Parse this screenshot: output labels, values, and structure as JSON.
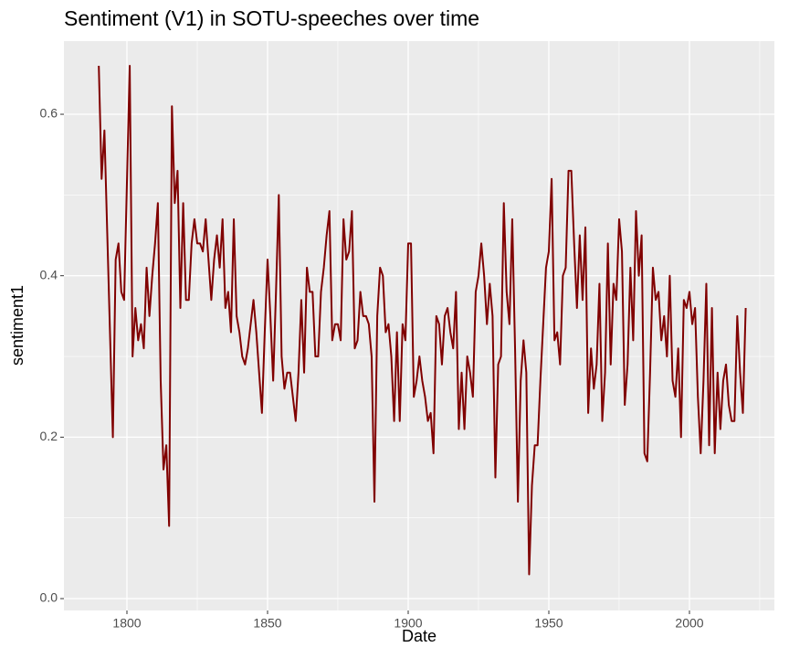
{
  "chart_data": {
    "type": "line",
    "title": "Sentiment (V1) in SOTU-speeches over time",
    "x_label": "Date",
    "y_label": "sentiment1",
    "xlim": [
      1777.6,
      2030.2
    ],
    "ylim": [
      -0.0147,
      0.6906
    ],
    "xticks": [
      1800,
      1850,
      1900,
      1950,
      2000
    ],
    "yticks": [
      {
        "value": 0,
        "label": "0.0"
      },
      0.2,
      0.4,
      0.6
    ],
    "x_minor_ticks": [
      1825,
      1875,
      1925,
      1975,
      2025
    ],
    "y_minor_ticks": [
      0.1,
      0.3,
      0.5
    ],
    "grid": true,
    "x": [
      1790,
      1791,
      1792,
      1795,
      1796,
      1797,
      1798,
      1799,
      1801,
      1802,
      1803,
      1804,
      1805,
      1806,
      1807,
      1808,
      1809,
      1810,
      1811,
      1812,
      1813,
      1814,
      1815,
      1816,
      1817,
      1818,
      1819,
      1820,
      1821,
      1822,
      1823,
      1824,
      1825,
      1826,
      1827,
      1828,
      1829,
      1830,
      1831,
      1832,
      1833,
      1834,
      1835,
      1836,
      1837,
      1838,
      1839,
      1840,
      1841,
      1842,
      1843,
      1845,
      1846,
      1847,
      1848,
      1849,
      1850,
      1851,
      1852,
      1853,
      1854,
      1855,
      1856,
      1857,
      1858,
      1859,
      1860,
      1861,
      1862,
      1863,
      1864,
      1865,
      1866,
      1867,
      1868,
      1869,
      1870,
      1871,
      1872,
      1873,
      1874,
      1875,
      1876,
      1877,
      1878,
      1879,
      1880,
      1881,
      1882,
      1883,
      1884,
      1885,
      1886,
      1887,
      1888,
      1889,
      1890,
      1891,
      1892,
      1893,
      1894,
      1895,
      1896,
      1897,
      1898,
      1899,
      1900,
      1901,
      1902,
      1903,
      1904,
      1905,
      1906,
      1907,
      1908,
      1909,
      1910,
      1911,
      1912,
      1913,
      1914,
      1915,
      1916,
      1917,
      1918,
      1919,
      1920,
      1921,
      1922,
      1923,
      1924,
      1925,
      1926,
      1927,
      1928,
      1929,
      1930,
      1931,
      1932,
      1933,
      1934,
      1935,
      1936,
      1937,
      1938,
      1939,
      1940,
      1941,
      1942,
      1943,
      1944,
      1945,
      1946,
      1947,
      1948,
      1949,
      1950,
      1951,
      1952,
      1953,
      1954,
      1955,
      1956,
      1957,
      1958,
      1959,
      1960,
      1961,
      1962,
      1963,
      1964,
      1965,
      1966,
      1967,
      1968,
      1969,
      1970,
      1971,
      1972,
      1973,
      1974,
      1975,
      1976,
      1977,
      1978,
      1979,
      1980,
      1981,
      1982,
      1983,
      1984,
      1985,
      1986,
      1987,
      1988,
      1989,
      1990,
      1991,
      1992,
      1993,
      1994,
      1995,
      1996,
      1997,
      1998,
      1999,
      2000,
      2001,
      2002,
      2003,
      2004,
      2005,
      2006,
      2007,
      2008,
      2009,
      2010,
      2011,
      2012,
      2013,
      2014,
      2015,
      2016,
      2017,
      2018,
      2019,
      2020
    ],
    "series": [
      {
        "color": "#800000",
        "values": [
          0.66,
          0.52,
          0.58,
          0.2,
          0.42,
          0.44,
          0.38,
          0.37,
          0.66,
          0.3,
          0.36,
          0.32,
          0.34,
          0.31,
          0.41,
          0.35,
          0.4,
          0.44,
          0.49,
          0.27,
          0.16,
          0.19,
          0.09,
          0.61,
          0.49,
          0.53,
          0.36,
          0.49,
          0.37,
          0.37,
          0.44,
          0.47,
          0.44,
          0.44,
          0.43,
          0.47,
          0.42,
          0.37,
          0.42,
          0.45,
          0.41,
          0.47,
          0.36,
          0.38,
          0.33,
          0.47,
          0.35,
          0.33,
          0.3,
          0.29,
          0.31,
          0.37,
          0.33,
          0.28,
          0.23,
          0.33,
          0.42,
          0.35,
          0.27,
          0.38,
          0.5,
          0.3,
          0.26,
          0.28,
          0.28,
          0.25,
          0.22,
          0.28,
          0.37,
          0.28,
          0.41,
          0.38,
          0.38,
          0.3,
          0.3,
          0.38,
          0.41,
          0.45,
          0.48,
          0.32,
          0.34,
          0.34,
          0.32,
          0.47,
          0.42,
          0.43,
          0.48,
          0.31,
          0.32,
          0.38,
          0.35,
          0.35,
          0.34,
          0.3,
          0.12,
          0.35,
          0.41,
          0.4,
          0.33,
          0.34,
          0.3,
          0.22,
          0.33,
          0.22,
          0.34,
          0.32,
          0.44,
          0.44,
          0.25,
          0.27,
          0.3,
          0.27,
          0.25,
          0.22,
          0.23,
          0.18,
          0.35,
          0.34,
          0.29,
          0.35,
          0.36,
          0.33,
          0.31,
          0.38,
          0.21,
          0.28,
          0.21,
          0.3,
          0.28,
          0.25,
          0.38,
          0.4,
          0.44,
          0.4,
          0.34,
          0.39,
          0.35,
          0.15,
          0.29,
          0.3,
          0.49,
          0.38,
          0.34,
          0.47,
          0.31,
          0.12,
          0.27,
          0.32,
          0.28,
          0.03,
          0.14,
          0.19,
          0.19,
          0.27,
          0.34,
          0.41,
          0.43,
          0.52,
          0.32,
          0.33,
          0.29,
          0.4,
          0.41,
          0.53,
          0.53,
          0.44,
          0.36,
          0.45,
          0.37,
          0.46,
          0.23,
          0.31,
          0.26,
          0.29,
          0.39,
          0.22,
          0.28,
          0.44,
          0.29,
          0.39,
          0.37,
          0.47,
          0.43,
          0.24,
          0.29,
          0.41,
          0.32,
          0.48,
          0.4,
          0.45,
          0.18,
          0.17,
          0.28,
          0.41,
          0.37,
          0.38,
          0.32,
          0.35,
          0.3,
          0.4,
          0.27,
          0.25,
          0.31,
          0.2,
          0.37,
          0.36,
          0.38,
          0.34,
          0.36,
          0.25,
          0.18,
          0.27,
          0.39,
          0.19,
          0.36,
          0.18,
          0.28,
          0.21,
          0.27,
          0.29,
          0.24,
          0.22,
          0.22,
          0.35,
          0.28,
          0.23,
          0.36
        ]
      }
    ]
  }
}
